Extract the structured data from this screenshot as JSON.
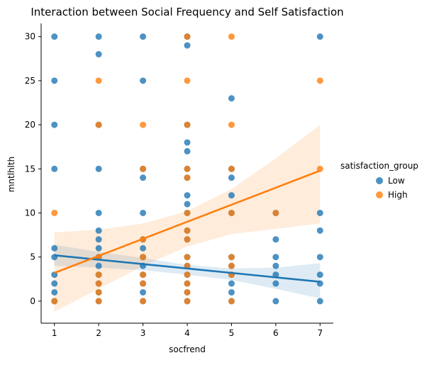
{
  "chart_data": {
    "type": "scatter",
    "title": "Interaction between Social Frequency and Self Satisfaction",
    "xlabel": "socfrend",
    "ylabel": "mntlhlth",
    "xlim": [
      0.7,
      7.3
    ],
    "ylim": [
      -2.5,
      31.5
    ],
    "x_ticks": [
      1,
      2,
      3,
      4,
      5,
      6,
      7
    ],
    "y_ticks": [
      0,
      5,
      10,
      15,
      20,
      25,
      30
    ],
    "grid": false,
    "legend": {
      "title": "satisfaction_group",
      "placement": "right"
    },
    "series": [
      {
        "name": "Low",
        "color": "#1f77b4",
        "points": [
          [
            1,
            30
          ],
          [
            1,
            25
          ],
          [
            1,
            20
          ],
          [
            1,
            15
          ],
          [
            1,
            6
          ],
          [
            1,
            5
          ],
          [
            1,
            3
          ],
          [
            1,
            2
          ],
          [
            1,
            1
          ],
          [
            1,
            0
          ],
          [
            2,
            30
          ],
          [
            2,
            28
          ],
          [
            2,
            20
          ],
          [
            2,
            15
          ],
          [
            2,
            10
          ],
          [
            2,
            8
          ],
          [
            2,
            7
          ],
          [
            2,
            6
          ],
          [
            2,
            5
          ],
          [
            2,
            4
          ],
          [
            2,
            3
          ],
          [
            2,
            2
          ],
          [
            2,
            1
          ],
          [
            2,
            0
          ],
          [
            3,
            30
          ],
          [
            3,
            25
          ],
          [
            3,
            15
          ],
          [
            3,
            14
          ],
          [
            3,
            10
          ],
          [
            3,
            7
          ],
          [
            3,
            6
          ],
          [
            3,
            5
          ],
          [
            3,
            4
          ],
          [
            3,
            3
          ],
          [
            3,
            2
          ],
          [
            3,
            1
          ],
          [
            3,
            0
          ],
          [
            4,
            30
          ],
          [
            4,
            29
          ],
          [
            4,
            20
          ],
          [
            4,
            18
          ],
          [
            4,
            17
          ],
          [
            4,
            15
          ],
          [
            4,
            14
          ],
          [
            4,
            12
          ],
          [
            4,
            11
          ],
          [
            4,
            10
          ],
          [
            4,
            8
          ],
          [
            4,
            7
          ],
          [
            4,
            5
          ],
          [
            4,
            4
          ],
          [
            4,
            3
          ],
          [
            4,
            2
          ],
          [
            4,
            1
          ],
          [
            4,
            0
          ],
          [
            5,
            23
          ],
          [
            5,
            15
          ],
          [
            5,
            14
          ],
          [
            5,
            12
          ],
          [
            5,
            10
          ],
          [
            5,
            5
          ],
          [
            5,
            4
          ],
          [
            5,
            3
          ],
          [
            5,
            2
          ],
          [
            5,
            1
          ],
          [
            5,
            0
          ],
          [
            6,
            10
          ],
          [
            6,
            7
          ],
          [
            6,
            5
          ],
          [
            6,
            4
          ],
          [
            6,
            3
          ],
          [
            6,
            2
          ],
          [
            6,
            0
          ],
          [
            7,
            30
          ],
          [
            7,
            10
          ],
          [
            7,
            8
          ],
          [
            7,
            5
          ],
          [
            7,
            3
          ],
          [
            7,
            2
          ],
          [
            7,
            0
          ]
        ],
        "regression": {
          "x": [
            1,
            7
          ],
          "y": [
            5.2,
            2.2
          ]
        },
        "ci_upper": [
          [
            1,
            6.4
          ],
          [
            2,
            5.6
          ],
          [
            3,
            4.9
          ],
          [
            4,
            4.1
          ],
          [
            5,
            3.7
          ],
          [
            6,
            3.8
          ],
          [
            7,
            4.3
          ]
        ],
        "ci_lower": [
          [
            1,
            4.0
          ],
          [
            2,
            3.8
          ],
          [
            3,
            3.5
          ],
          [
            4,
            3.0
          ],
          [
            5,
            2.4
          ],
          [
            6,
            1.4
          ],
          [
            7,
            0.3
          ]
        ]
      },
      {
        "name": "High",
        "color": "#ff7f0e",
        "points": [
          [
            1,
            10
          ],
          [
            1,
            0
          ],
          [
            2,
            25
          ],
          [
            2,
            20
          ],
          [
            2,
            5
          ],
          [
            2,
            3
          ],
          [
            2,
            2
          ],
          [
            2,
            1
          ],
          [
            2,
            0
          ],
          [
            3,
            20
          ],
          [
            3,
            15
          ],
          [
            3,
            7
          ],
          [
            3,
            5
          ],
          [
            3,
            3
          ],
          [
            3,
            2
          ],
          [
            3,
            0
          ],
          [
            4,
            30
          ],
          [
            4,
            25
          ],
          [
            4,
            20
          ],
          [
            4,
            15
          ],
          [
            4,
            14
          ],
          [
            4,
            10
          ],
          [
            4,
            8
          ],
          [
            4,
            7
          ],
          [
            4,
            5
          ],
          [
            4,
            4
          ],
          [
            4,
            3
          ],
          [
            4,
            2
          ],
          [
            4,
            1
          ],
          [
            4,
            0
          ],
          [
            5,
            30
          ],
          [
            5,
            20
          ],
          [
            5,
            15
          ],
          [
            5,
            10
          ],
          [
            5,
            5
          ],
          [
            5,
            4
          ],
          [
            5,
            3
          ],
          [
            5,
            0
          ],
          [
            6,
            10
          ],
          [
            7,
            25
          ],
          [
            7,
            15
          ]
        ],
        "regression": {
          "x": [
            1,
            7
          ],
          "y": [
            3.2,
            14.8
          ]
        },
        "ci_upper": [
          [
            1,
            7.8
          ],
          [
            2,
            8.1
          ],
          [
            3,
            8.8
          ],
          [
            4,
            10.2
          ],
          [
            5,
            12.7
          ],
          [
            6,
            16.2
          ],
          [
            7,
            20.0
          ]
        ],
        "ci_lower": [
          [
            1,
            -1.2
          ],
          [
            2,
            1.4
          ],
          [
            3,
            4.0
          ],
          [
            4,
            6.2
          ],
          [
            5,
            7.6
          ],
          [
            6,
            8.2
          ],
          [
            7,
            8.8
          ]
        ]
      }
    ]
  }
}
